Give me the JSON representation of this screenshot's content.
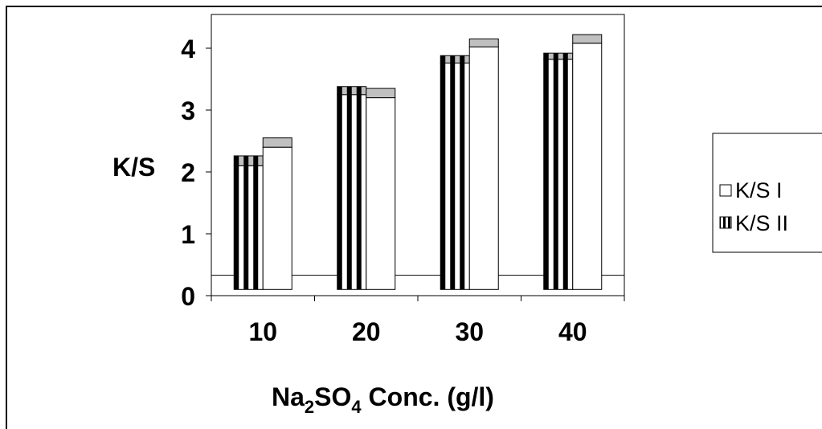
{
  "chart_data": {
    "type": "bar",
    "categories": [
      "10",
      "20",
      "30",
      "40"
    ],
    "series": [
      {
        "name": "K/S II",
        "pattern": "vertical-stripes",
        "values": [
          2.26,
          3.38,
          3.88,
          3.92
        ],
        "cap_bottom": [
          2.1,
          3.25,
          3.76,
          3.82
        ]
      },
      {
        "name": "K/S I",
        "pattern": "solid-white",
        "values": [
          2.55,
          3.35,
          4.15,
          4.22
        ],
        "cap_bottom": [
          2.4,
          3.2,
          4.02,
          4.08
        ]
      }
    ],
    "bar_base": 0.1,
    "reference_line": 0.33,
    "y_ticks": [
      "0",
      "1",
      "2",
      "3",
      "4"
    ],
    "ylim": [
      0,
      4.4
    ],
    "xlabel": {
      "base": "Na",
      "sub1": "2",
      "mid": "SO",
      "sub2": "4",
      "rest": " Conc. (g/l)"
    },
    "ylabel": "K/S",
    "legend": {
      "position": "right",
      "entries": [
        "K/S I",
        "K/S II"
      ]
    },
    "grid": false,
    "colors": {
      "stripe": "#000000",
      "bar_fill": "#ffffff",
      "cap": "#c0c0c0",
      "outline": "#000000"
    }
  }
}
